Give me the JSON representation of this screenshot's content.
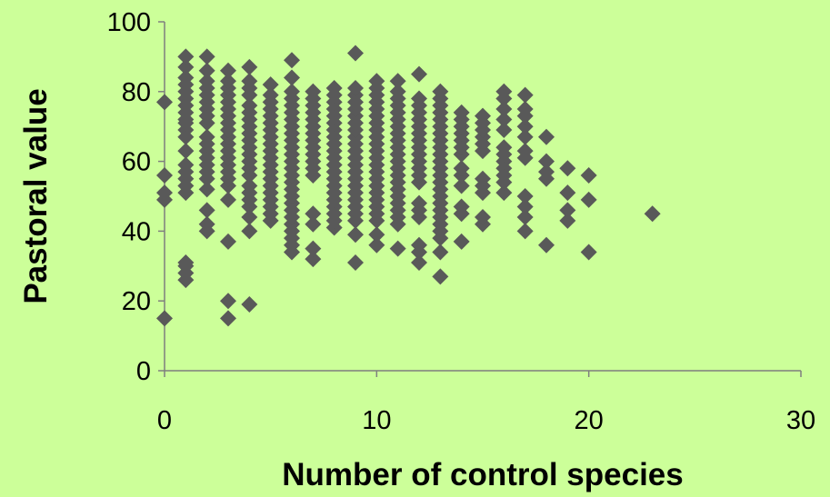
{
  "chart_data": {
    "type": "scatter",
    "title": "",
    "xlabel": "Number of control species",
    "ylabel": "Pastoral value",
    "xlim": [
      0,
      30
    ],
    "ylim": [
      0,
      100
    ],
    "x_ticks": [
      "0",
      "10",
      "20",
      "30"
    ],
    "y_ticks": [
      "0",
      "20",
      "40",
      "60",
      "80",
      "100"
    ],
    "grid": false,
    "legend": "none",
    "marker": "diamond",
    "colors": {
      "background": "#CCFF99",
      "marker": "#595959",
      "axis": "#7F7F7F"
    },
    "series": [
      {
        "points": [
          [
            0,
            15
          ],
          [
            0,
            49
          ],
          [
            0,
            51
          ],
          [
            0,
            56
          ],
          [
            0,
            77
          ],
          [
            1,
            26
          ],
          [
            1,
            28
          ],
          [
            1,
            30
          ],
          [
            1,
            31
          ],
          [
            1,
            51
          ],
          [
            1,
            53
          ],
          [
            1,
            55
          ],
          [
            1,
            57
          ],
          [
            1,
            59
          ],
          [
            1,
            63
          ],
          [
            1,
            67
          ],
          [
            1,
            69
          ],
          [
            1,
            71
          ],
          [
            1,
            72
          ],
          [
            1,
            74
          ],
          [
            1,
            76
          ],
          [
            1,
            78
          ],
          [
            1,
            80
          ],
          [
            1,
            82
          ],
          [
            1,
            84
          ],
          [
            1,
            87
          ],
          [
            1,
            90
          ],
          [
            2,
            40
          ],
          [
            2,
            42
          ],
          [
            2,
            46
          ],
          [
            2,
            52
          ],
          [
            2,
            55
          ],
          [
            2,
            57
          ],
          [
            2,
            59
          ],
          [
            2,
            61
          ],
          [
            2,
            63
          ],
          [
            2,
            65
          ],
          [
            2,
            67
          ],
          [
            2,
            71
          ],
          [
            2,
            73
          ],
          [
            2,
            75
          ],
          [
            2,
            77
          ],
          [
            2,
            79
          ],
          [
            2,
            81
          ],
          [
            2,
            83
          ],
          [
            2,
            86
          ],
          [
            2,
            90
          ],
          [
            3,
            15
          ],
          [
            3,
            20
          ],
          [
            3,
            37
          ],
          [
            3,
            49
          ],
          [
            3,
            53
          ],
          [
            3,
            55
          ],
          [
            3,
            57
          ],
          [
            3,
            59
          ],
          [
            3,
            61
          ],
          [
            3,
            63
          ],
          [
            3,
            65
          ],
          [
            3,
            67
          ],
          [
            3,
            69
          ],
          [
            3,
            71
          ],
          [
            3,
            73
          ],
          [
            3,
            75
          ],
          [
            3,
            77
          ],
          [
            3,
            79
          ],
          [
            3,
            81
          ],
          [
            3,
            83
          ],
          [
            3,
            86
          ],
          [
            4,
            19
          ],
          [
            4,
            40
          ],
          [
            4,
            44
          ],
          [
            4,
            47
          ],
          [
            4,
            49
          ],
          [
            4,
            51
          ],
          [
            4,
            53
          ],
          [
            4,
            56
          ],
          [
            4,
            58
          ],
          [
            4,
            60
          ],
          [
            4,
            62
          ],
          [
            4,
            64
          ],
          [
            4,
            66
          ],
          [
            4,
            68
          ],
          [
            4,
            70
          ],
          [
            4,
            72
          ],
          [
            4,
            74
          ],
          [
            4,
            76
          ],
          [
            4,
            79
          ],
          [
            4,
            81
          ],
          [
            4,
            83
          ],
          [
            4,
            87
          ],
          [
            5,
            43
          ],
          [
            5,
            45
          ],
          [
            5,
            47
          ],
          [
            5,
            49
          ],
          [
            5,
            51
          ],
          [
            5,
            53
          ],
          [
            5,
            55
          ],
          [
            5,
            57
          ],
          [
            5,
            59
          ],
          [
            5,
            61
          ],
          [
            5,
            63
          ],
          [
            5,
            65
          ],
          [
            5,
            67
          ],
          [
            5,
            69
          ],
          [
            5,
            71
          ],
          [
            5,
            73
          ],
          [
            5,
            75
          ],
          [
            5,
            77
          ],
          [
            5,
            79
          ],
          [
            5,
            82
          ],
          [
            6,
            34
          ],
          [
            6,
            36
          ],
          [
            6,
            38
          ],
          [
            6,
            40
          ],
          [
            6,
            42
          ],
          [
            6,
            44
          ],
          [
            6,
            46
          ],
          [
            6,
            48
          ],
          [
            6,
            50
          ],
          [
            6,
            52
          ],
          [
            6,
            54
          ],
          [
            6,
            56
          ],
          [
            6,
            58
          ],
          [
            6,
            60
          ],
          [
            6,
            62
          ],
          [
            6,
            64
          ],
          [
            6,
            66
          ],
          [
            6,
            68
          ],
          [
            6,
            70
          ],
          [
            6,
            72
          ],
          [
            6,
            74
          ],
          [
            6,
            76
          ],
          [
            6,
            78
          ],
          [
            6,
            80
          ],
          [
            6,
            84
          ],
          [
            6,
            89
          ],
          [
            7,
            32
          ],
          [
            7,
            35
          ],
          [
            7,
            42
          ],
          [
            7,
            45
          ],
          [
            7,
            56
          ],
          [
            7,
            58
          ],
          [
            7,
            60
          ],
          [
            7,
            62
          ],
          [
            7,
            64
          ],
          [
            7,
            66
          ],
          [
            7,
            68
          ],
          [
            7,
            70
          ],
          [
            7,
            72
          ],
          [
            7,
            74
          ],
          [
            7,
            76
          ],
          [
            7,
            78
          ],
          [
            7,
            80
          ],
          [
            8,
            41
          ],
          [
            8,
            43
          ],
          [
            8,
            45
          ],
          [
            8,
            47
          ],
          [
            8,
            49
          ],
          [
            8,
            51
          ],
          [
            8,
            53
          ],
          [
            8,
            55
          ],
          [
            8,
            57
          ],
          [
            8,
            59
          ],
          [
            8,
            61
          ],
          [
            8,
            63
          ],
          [
            8,
            65
          ],
          [
            8,
            67
          ],
          [
            8,
            69
          ],
          [
            8,
            71
          ],
          [
            8,
            73
          ],
          [
            8,
            75
          ],
          [
            8,
            77
          ],
          [
            8,
            79
          ],
          [
            8,
            81
          ],
          [
            9,
            31
          ],
          [
            9,
            39
          ],
          [
            9,
            43
          ],
          [
            9,
            45
          ],
          [
            9,
            47
          ],
          [
            9,
            49
          ],
          [
            9,
            51
          ],
          [
            9,
            53
          ],
          [
            9,
            55
          ],
          [
            9,
            57
          ],
          [
            9,
            59
          ],
          [
            9,
            61
          ],
          [
            9,
            63
          ],
          [
            9,
            65
          ],
          [
            9,
            67
          ],
          [
            9,
            69
          ],
          [
            9,
            71
          ],
          [
            9,
            73
          ],
          [
            9,
            75
          ],
          [
            9,
            77
          ],
          [
            9,
            79
          ],
          [
            9,
            81
          ],
          [
            9,
            91
          ],
          [
            10,
            36
          ],
          [
            10,
            39
          ],
          [
            10,
            43
          ],
          [
            10,
            45
          ],
          [
            10,
            47
          ],
          [
            10,
            49
          ],
          [
            10,
            51
          ],
          [
            10,
            53
          ],
          [
            10,
            55
          ],
          [
            10,
            57
          ],
          [
            10,
            59
          ],
          [
            10,
            61
          ],
          [
            10,
            63
          ],
          [
            10,
            65
          ],
          [
            10,
            67
          ],
          [
            10,
            69
          ],
          [
            10,
            71
          ],
          [
            10,
            73
          ],
          [
            10,
            75
          ],
          [
            10,
            77
          ],
          [
            10,
            79
          ],
          [
            10,
            81
          ],
          [
            10,
            83
          ],
          [
            11,
            35
          ],
          [
            11,
            42
          ],
          [
            11,
            44
          ],
          [
            11,
            46
          ],
          [
            11,
            48
          ],
          [
            11,
            50
          ],
          [
            11,
            52
          ],
          [
            11,
            54
          ],
          [
            11,
            56
          ],
          [
            11,
            58
          ],
          [
            11,
            60
          ],
          [
            11,
            62
          ],
          [
            11,
            64
          ],
          [
            11,
            66
          ],
          [
            11,
            68
          ],
          [
            11,
            70
          ],
          [
            11,
            72
          ],
          [
            11,
            74
          ],
          [
            11,
            76
          ],
          [
            11,
            78
          ],
          [
            11,
            80
          ],
          [
            11,
            83
          ],
          [
            12,
            31
          ],
          [
            12,
            34
          ],
          [
            12,
            36
          ],
          [
            12,
            44
          ],
          [
            12,
            46
          ],
          [
            12,
            48
          ],
          [
            12,
            54
          ],
          [
            12,
            56
          ],
          [
            12,
            58
          ],
          [
            12,
            60
          ],
          [
            12,
            62
          ],
          [
            12,
            64
          ],
          [
            12,
            66
          ],
          [
            12,
            68
          ],
          [
            12,
            70
          ],
          [
            12,
            72
          ],
          [
            12,
            74
          ],
          [
            12,
            76
          ],
          [
            12,
            78
          ],
          [
            12,
            85
          ],
          [
            13,
            27
          ],
          [
            13,
            34
          ],
          [
            13,
            38
          ],
          [
            13,
            40
          ],
          [
            13,
            42
          ],
          [
            13,
            44
          ],
          [
            13,
            46
          ],
          [
            13,
            48
          ],
          [
            13,
            50
          ],
          [
            13,
            52
          ],
          [
            13,
            54
          ],
          [
            13,
            56
          ],
          [
            13,
            58
          ],
          [
            13,
            60
          ],
          [
            13,
            62
          ],
          [
            13,
            64
          ],
          [
            13,
            66
          ],
          [
            13,
            68
          ],
          [
            13,
            70
          ],
          [
            13,
            72
          ],
          [
            13,
            74
          ],
          [
            13,
            76
          ],
          [
            13,
            78
          ],
          [
            13,
            80
          ],
          [
            14,
            37
          ],
          [
            14,
            45
          ],
          [
            14,
            47
          ],
          [
            14,
            53
          ],
          [
            14,
            56
          ],
          [
            14,
            58
          ],
          [
            14,
            62
          ],
          [
            14,
            64
          ],
          [
            14,
            66
          ],
          [
            14,
            68
          ],
          [
            14,
            70
          ],
          [
            14,
            72
          ],
          [
            14,
            74
          ],
          [
            15,
            42
          ],
          [
            15,
            44
          ],
          [
            15,
            51
          ],
          [
            15,
            53
          ],
          [
            15,
            55
          ],
          [
            15,
            63
          ],
          [
            15,
            65
          ],
          [
            15,
            67
          ],
          [
            15,
            69
          ],
          [
            15,
            71
          ],
          [
            15,
            73
          ],
          [
            16,
            51
          ],
          [
            16,
            54
          ],
          [
            16,
            56
          ],
          [
            16,
            58
          ],
          [
            16,
            60
          ],
          [
            16,
            62
          ],
          [
            16,
            64
          ],
          [
            16,
            69
          ],
          [
            16,
            72
          ],
          [
            16,
            75
          ],
          [
            16,
            78
          ],
          [
            16,
            80
          ],
          [
            17,
            40
          ],
          [
            17,
            44
          ],
          [
            17,
            47
          ],
          [
            17,
            50
          ],
          [
            17,
            61
          ],
          [
            17,
            63
          ],
          [
            17,
            67
          ],
          [
            17,
            70
          ],
          [
            17,
            73
          ],
          [
            17,
            75
          ],
          [
            17,
            79
          ],
          [
            18,
            36
          ],
          [
            18,
            55
          ],
          [
            18,
            57
          ],
          [
            18,
            60
          ],
          [
            18,
            67
          ],
          [
            19,
            43
          ],
          [
            19,
            46
          ],
          [
            19,
            51
          ],
          [
            19,
            58
          ],
          [
            20,
            34
          ],
          [
            20,
            49
          ],
          [
            20,
            56
          ],
          [
            23,
            45
          ]
        ]
      }
    ]
  }
}
